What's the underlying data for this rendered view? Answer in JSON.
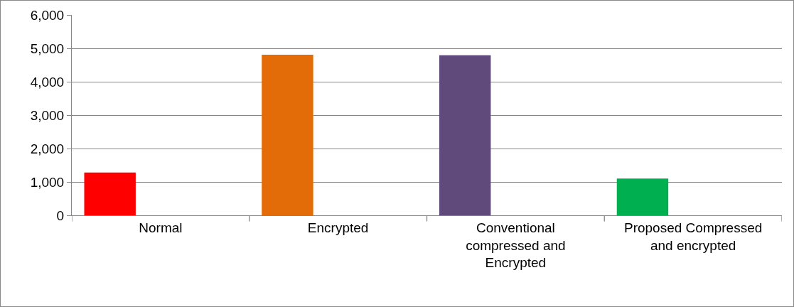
{
  "chart_data": {
    "type": "bar",
    "categories": [
      "Normal",
      "Encrypted",
      "Conventional compressed and Encrypted",
      "Proposed Compressed and encrypted"
    ],
    "values": [
      1280,
      4810,
      4790,
      1100
    ],
    "colors": [
      "#ff0000",
      "#e36c09",
      "#604a7b",
      "#00b050"
    ],
    "ylim": [
      0,
      6000
    ],
    "yticks": [
      {
        "value": 0,
        "label": "0"
      },
      {
        "value": 1000,
        "label": "1,000"
      },
      {
        "value": 2000,
        "label": "2,000"
      },
      {
        "value": 3000,
        "label": "3,000"
      },
      {
        "value": 4000,
        "label": "4,000"
      },
      {
        "value": 5000,
        "label": "5,000"
      },
      {
        "value": 6000,
        "label": "6,000"
      }
    ],
    "grid": "y"
  }
}
